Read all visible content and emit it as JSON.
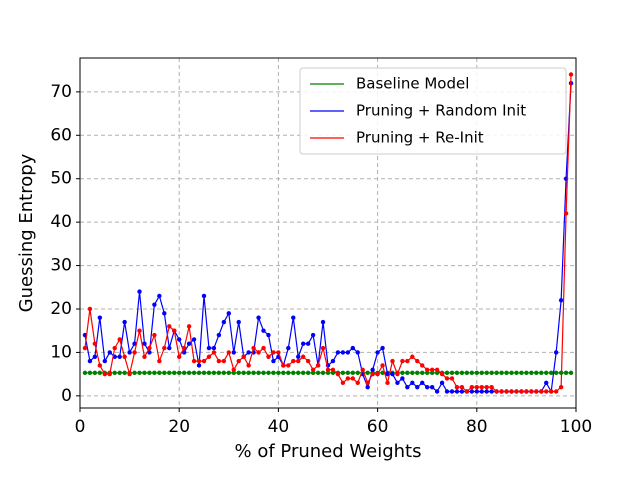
{
  "chart_data": {
    "type": "line",
    "xlabel": "% of Pruned Weights",
    "ylabel": "Guessing Entropy",
    "x": [
      1,
      2,
      3,
      4,
      5,
      6,
      7,
      8,
      9,
      10,
      11,
      12,
      13,
      14,
      15,
      16,
      17,
      18,
      19,
      20,
      21,
      22,
      23,
      24,
      25,
      26,
      27,
      28,
      29,
      30,
      31,
      32,
      33,
      34,
      35,
      36,
      37,
      38,
      39,
      40,
      41,
      42,
      43,
      44,
      45,
      46,
      47,
      48,
      49,
      50,
      51,
      52,
      53,
      54,
      55,
      56,
      57,
      58,
      59,
      60,
      61,
      62,
      63,
      64,
      65,
      66,
      67,
      68,
      69,
      70,
      71,
      72,
      73,
      74,
      75,
      76,
      77,
      78,
      79,
      80,
      81,
      82,
      83,
      84,
      85,
      86,
      87,
      88,
      89,
      90,
      91,
      92,
      93,
      94,
      95,
      96,
      97,
      98,
      99
    ],
    "series": [
      {
        "name": "Baseline Model",
        "color": "#008000",
        "values": [
          5.3,
          5.3,
          5.3,
          5.3,
          5.3,
          5.3,
          5.3,
          5.3,
          5.3,
          5.3,
          5.3,
          5.3,
          5.3,
          5.3,
          5.3,
          5.3,
          5.3,
          5.3,
          5.3,
          5.3,
          5.3,
          5.3,
          5.3,
          5.3,
          5.3,
          5.3,
          5.3,
          5.3,
          5.3,
          5.3,
          5.3,
          5.3,
          5.3,
          5.3,
          5.3,
          5.3,
          5.3,
          5.3,
          5.3,
          5.3,
          5.3,
          5.3,
          5.3,
          5.3,
          5.3,
          5.3,
          5.3,
          5.3,
          5.3,
          5.3,
          5.3,
          5.3,
          5.3,
          5.3,
          5.3,
          5.3,
          5.3,
          5.3,
          5.3,
          5.3,
          5.3,
          5.3,
          5.3,
          5.3,
          5.3,
          5.3,
          5.3,
          5.3,
          5.3,
          5.3,
          5.3,
          5.3,
          5.3,
          5.3,
          5.3,
          5.3,
          5.3,
          5.3,
          5.3,
          5.3,
          5.3,
          5.3,
          5.3,
          5.3,
          5.3,
          5.3,
          5.3,
          5.3,
          5.3,
          5.3,
          5.3,
          5.3,
          5.3,
          5.3,
          5.3,
          5.3,
          5.3,
          5.3,
          5.3
        ]
      },
      {
        "name": "Pruning + Random Init",
        "color": "#0000ff",
        "values": [
          14,
          8,
          9,
          18,
          8,
          10,
          9,
          9,
          17,
          10,
          12,
          24,
          12,
          10,
          21,
          23,
          19,
          11,
          15,
          13,
          10,
          12,
          13,
          7,
          23,
          11,
          11,
          14,
          17,
          19,
          10,
          17,
          9,
          10,
          10,
          18,
          15,
          14,
          8,
          9,
          7,
          11,
          18,
          9,
          12,
          12,
          14,
          7,
          17,
          7,
          8,
          10,
          10,
          10,
          11,
          10,
          5,
          2,
          6,
          10,
          11,
          5,
          5,
          3,
          4,
          2,
          3,
          2,
          3,
          2,
          2,
          1,
          3,
          1,
          1,
          1,
          1,
          1,
          1,
          1,
          1,
          1,
          1,
          1,
          1,
          1,
          1,
          1,
          1,
          1,
          1,
          1,
          1,
          3,
          1,
          10,
          22,
          50,
          72
        ]
      },
      {
        "name": "Pruning + Re-Init",
        "color": "#ff0000",
        "values": [
          11,
          20,
          12,
          7,
          5,
          5,
          11,
          13,
          9,
          5,
          10,
          15,
          9,
          11,
          14,
          8,
          11,
          16,
          15,
          9,
          11,
          16,
          8,
          8,
          8,
          9,
          10,
          8,
          8,
          10,
          6,
          8,
          9,
          7,
          11,
          10,
          11,
          9,
          10,
          10,
          7,
          7,
          8,
          8,
          9,
          8,
          6,
          7,
          11,
          6,
          6,
          5,
          3,
          4,
          4,
          3,
          6,
          3,
          5,
          5,
          7,
          3,
          8,
          5,
          8,
          8,
          9,
          8,
          7,
          6,
          6,
          6,
          5,
          4,
          4,
          2,
          2,
          1,
          2,
          2,
          2,
          2,
          2,
          1,
          1,
          1,
          1,
          1,
          1,
          1,
          1,
          1,
          1,
          1,
          1,
          1,
          2,
          42,
          74
        ]
      }
    ],
    "xlim": [
      0,
      100
    ],
    "xticks": [
      0,
      20,
      40,
      60,
      80,
      100
    ],
    "ylim": [
      -2.8,
      77.8
    ],
    "yticks": [
      0,
      10,
      20,
      30,
      40,
      50,
      60,
      70
    ],
    "grid": true,
    "legend": "upper right"
  }
}
